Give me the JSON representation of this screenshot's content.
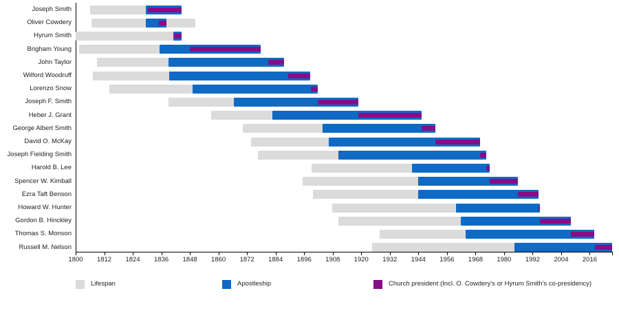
{
  "chart_data": {
    "type": "gantt-timeline",
    "description": "Timeline of presidents of the LDS Church: lifespan, apostleship and church presidency per person",
    "x_axis": {
      "min": 1800,
      "max": 2025.4,
      "tick_interval": 12,
      "ticks": [
        1800,
        1812,
        1824,
        1836,
        1848,
        1860,
        1872,
        1884,
        1896,
        1908,
        1920,
        1932,
        1944,
        1956,
        1968,
        1980,
        1992,
        2004,
        2016
      ]
    },
    "legend": [
      {
        "key": "lifespan",
        "label": "Lifespan",
        "color": "#dbdbdb"
      },
      {
        "key": "apostleship",
        "label": "Apostleship",
        "color": "#0e6ac4"
      },
      {
        "key": "presidency",
        "label": "Church president (Incl. O. Cowdery's or Hyrum Smith's co-presidency)",
        "color": "#880b88"
      }
    ],
    "people": [
      {
        "name": "Joseph Smith",
        "lifespan": [
          1805.98,
          1844.49
        ],
        "apostleship": [
          1829.45,
          1844.49
        ],
        "presidency": [
          1830.27,
          1844.49
        ]
      },
      {
        "name": "Oliver Cowdery",
        "lifespan": [
          1806.75,
          1850.17
        ],
        "apostleship": [
          1829.45,
          1838.28
        ],
        "presidency": [
          1834.93,
          1838.28
        ]
      },
      {
        "name": "Hyrum Smith",
        "lifespan": [
          1800.11,
          1844.49
        ],
        "apostleship": [
          1841.07,
          1844.49
        ],
        "presidency": [
          1841.4,
          1844.49
        ]
      },
      {
        "name": "Brigham Young",
        "lifespan": [
          1801.42,
          1877.66
        ],
        "apostleship": [
          1835.12,
          1877.66
        ],
        "presidency": [
          1847.99,
          1877.66
        ]
      },
      {
        "name": "John Taylor",
        "lifespan": [
          1808.84,
          1887.56
        ],
        "apostleship": [
          1838.97,
          1887.56
        ],
        "presidency": [
          1880.78,
          1887.56
        ]
      },
      {
        "name": "Wilford Woodruff",
        "lifespan": [
          1807.16,
          1898.67
        ],
        "apostleship": [
          1839.32,
          1898.67
        ],
        "presidency": [
          1889.27,
          1898.67
        ]
      },
      {
        "name": "Lorenzo Snow",
        "lifespan": [
          1814.25,
          1901.77
        ],
        "apostleship": [
          1849.12,
          1901.77
        ],
        "presidency": [
          1898.7,
          1901.77
        ]
      },
      {
        "name": "Joseph F. Smith",
        "lifespan": [
          1838.87,
          1918.88
        ],
        "apostleship": [
          1866.5,
          1918.88
        ],
        "presidency": [
          1901.79,
          1918.88
        ]
      },
      {
        "name": "Heber J. Grant",
        "lifespan": [
          1856.89,
          1945.37
        ],
        "apostleship": [
          1882.79,
          1945.37
        ],
        "presidency": [
          1918.9,
          1945.37
        ]
      },
      {
        "name": "George Albert Smith",
        "lifespan": [
          1870.26,
          1951.26
        ],
        "apostleship": [
          1903.77,
          1951.26
        ],
        "presidency": [
          1945.39,
          1951.26
        ]
      },
      {
        "name": "David O. McKay",
        "lifespan": [
          1873.69,
          1970.05
        ],
        "apostleship": [
          1906.27,
          1970.05
        ],
        "presidency": [
          1951.27,
          1970.05
        ]
      },
      {
        "name": "Joseph Fielding Smith",
        "lifespan": [
          1876.55,
          1972.5
        ],
        "apostleship": [
          1910.27,
          1972.5
        ],
        "presidency": [
          1970.06,
          1972.5
        ]
      },
      {
        "name": "Harold B. Lee",
        "lifespan": [
          1899.24,
          1973.99
        ],
        "apostleship": [
          1941.27,
          1973.99
        ],
        "presidency": [
          1972.52,
          1973.99
        ]
      },
      {
        "name": "Spencer W. Kimball",
        "lifespan": [
          1895.24,
          1985.84
        ],
        "apostleship": [
          1943.77,
          1985.84
        ],
        "presidency": [
          1973.99,
          1985.84
        ]
      },
      {
        "name": "Ezra Taft Benson",
        "lifespan": [
          1899.59,
          1994.41
        ],
        "apostleship": [
          1943.77,
          1994.41
        ],
        "presidency": [
          1985.86,
          1994.41
        ]
      },
      {
        "name": "Howard W. Hunter",
        "lifespan": [
          1907.87,
          1995.17
        ],
        "apostleship": [
          1959.79,
          1995.17
        ],
        "presidency": [
          1994.43,
          1995.17
        ]
      },
      {
        "name": "Gordon B. Hinckley",
        "lifespan": [
          1910.47,
          2008.07
        ],
        "apostleship": [
          1961.76,
          2008.07
        ],
        "presidency": [
          1995.19,
          2008.07
        ]
      },
      {
        "name": "Thomas S. Monson",
        "lifespan": [
          1927.64,
          2018.01
        ],
        "apostleship": [
          1963.77,
          2018.01
        ],
        "presidency": [
          2008.09,
          2018.01
        ]
      },
      {
        "name": "Russell M. Nelson",
        "lifespan": [
          1924.69,
          2025.4
        ],
        "apostleship": [
          1984.28,
          2025.4
        ],
        "presidency": [
          2018.04,
          2025.4
        ]
      }
    ]
  }
}
